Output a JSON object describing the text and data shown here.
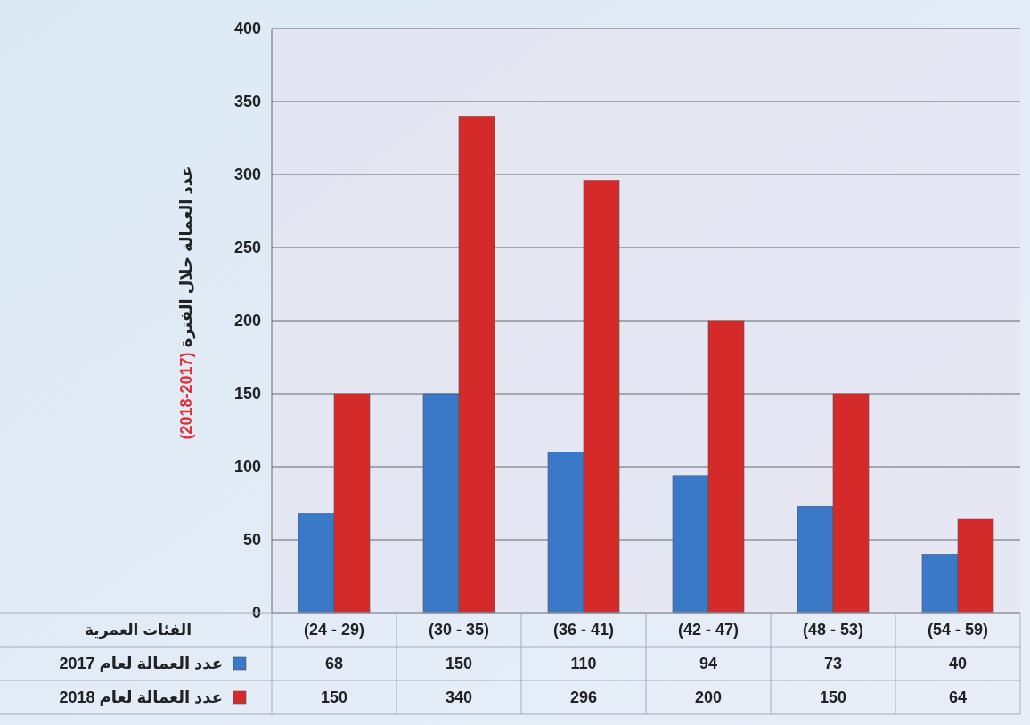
{
  "chart_data": {
    "type": "bar",
    "ylabel": "عدد العمالة خلال الفترة (2018-2017)",
    "xlabel": "الفئات العمرية",
    "categories": [
      "(24 - 29)",
      "(30 - 35)",
      "(36 - 41)",
      "(42 - 47)",
      "(48 - 53)",
      "(54 - 59)"
    ],
    "series": [
      {
        "name": "عدد العمالة لعام 2017",
        "color": "#3a78c8",
        "values": [
          68,
          150,
          110,
          94,
          73,
          40
        ]
      },
      {
        "name": "عدد العمالة لعام 2018",
        "color": "#d42a2a",
        "values": [
          150,
          340,
          296,
          200,
          150,
          64
        ]
      }
    ],
    "ylim": [
      0,
      400
    ],
    "yticks": [
      0,
      50,
      100,
      150,
      200,
      250,
      300,
      350,
      400
    ],
    "grid": "y",
    "data_labels": true,
    "legend": "bottom left"
  }
}
